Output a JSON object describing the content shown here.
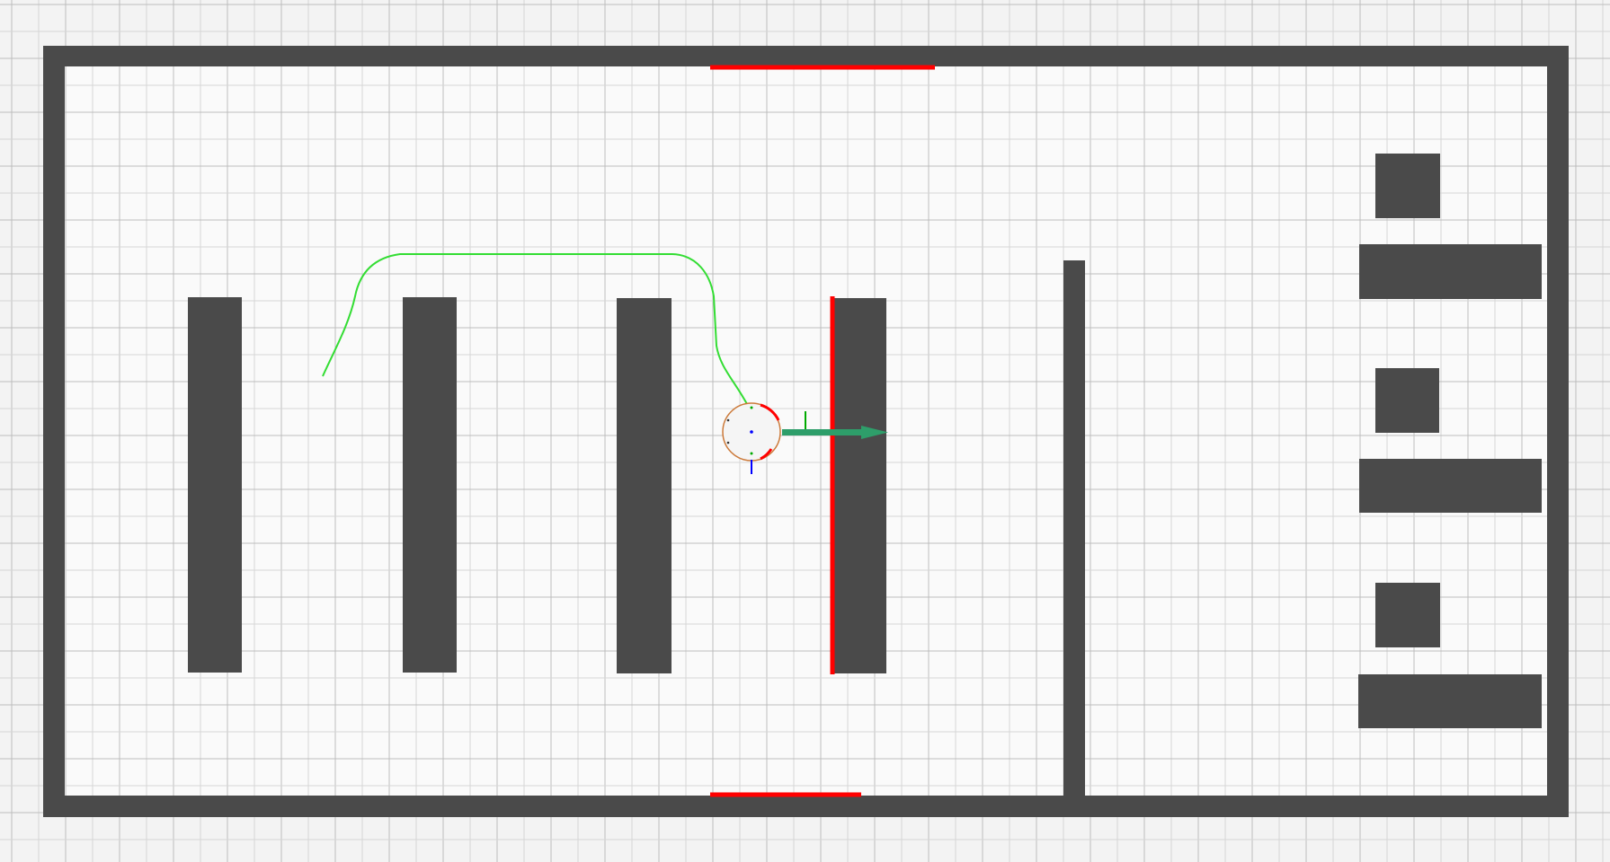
{
  "viewer": {
    "colors": {
      "background": "#f3f3f3",
      "grid_major": "#bdbdbd",
      "grid_minor": "#d6d6d6",
      "occupied": "#4a4a4a",
      "free_space": "#fafafa",
      "laser_scan": "#ff0000",
      "planned_path": "#33dd33",
      "robot_footprint": "#cc7a3a",
      "robot_body": "#f5f5f5",
      "goal_arrow": "#2e9e6a",
      "axis_x": "#ff0000",
      "axis_y": "#00aa00",
      "axis_z": "#0000ff"
    },
    "robot": {
      "icon": "robot-base-icon",
      "heading": "east"
    },
    "goal": {
      "icon": "goal-pose-arrow-icon",
      "heading": "east"
    }
  }
}
